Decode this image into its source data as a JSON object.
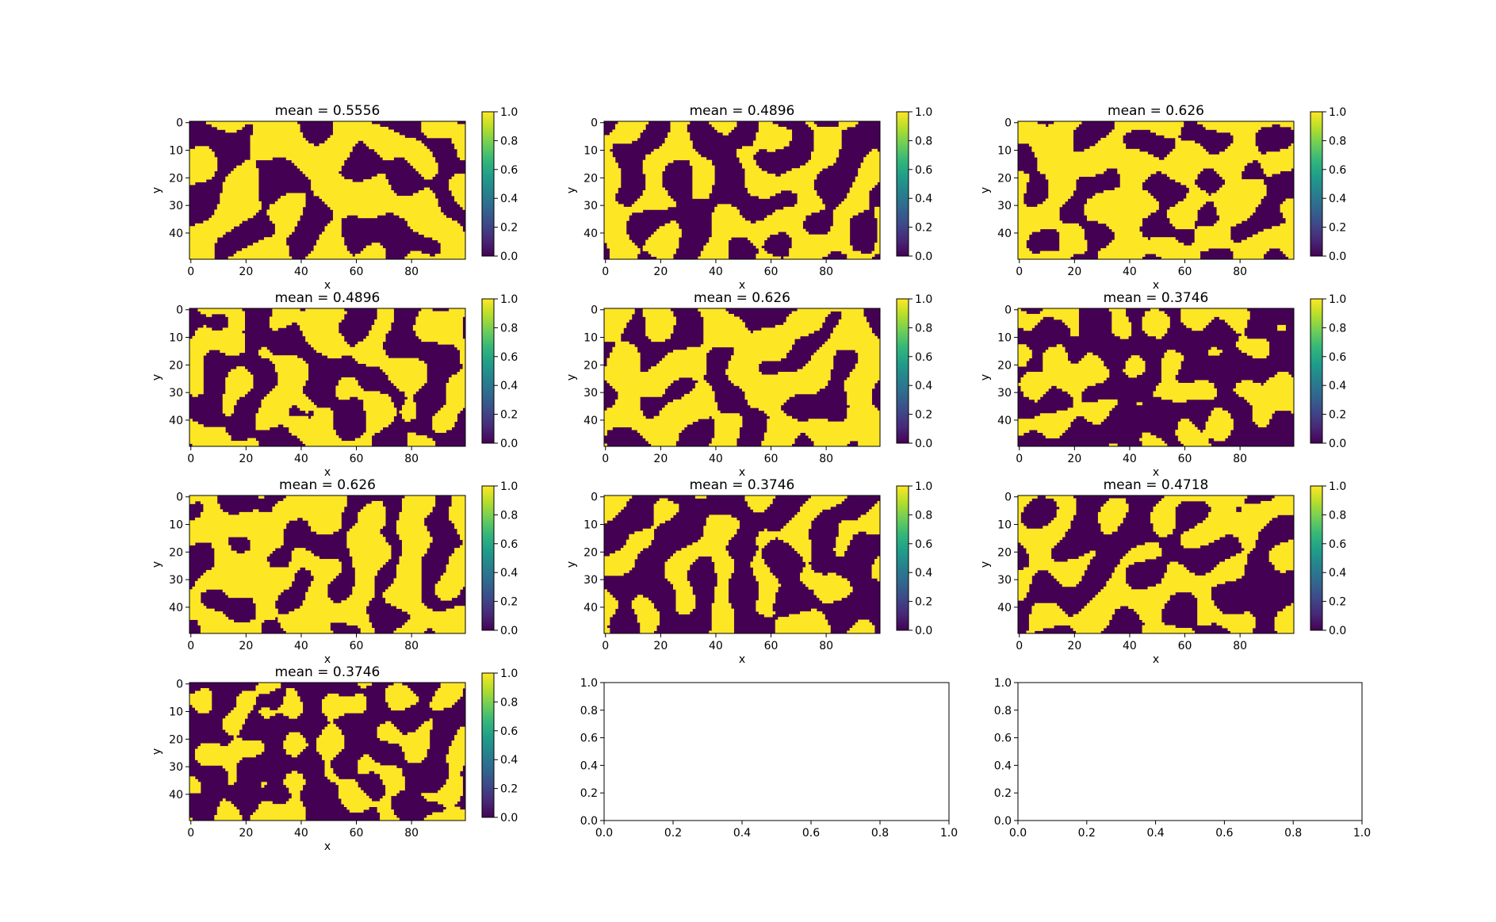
{
  "figure": {
    "grid_rows": 4,
    "grid_cols": 3,
    "colormap": "viridis (binary: 0.0 = #440154, 1.0 = #fde725)"
  },
  "colors": {
    "low": "#440154",
    "high": "#fde725",
    "viridis_stops": [
      "#440154",
      "#482878",
      "#3e4989",
      "#31688e",
      "#26828e",
      "#1f9e89",
      "#35b779",
      "#6ece58",
      "#b5de2b",
      "#fde725"
    ]
  },
  "chart_data": [
    {
      "type": "heatmap",
      "panel": 1,
      "title": "mean = 0.5556",
      "mean": 0.5556,
      "seed": 11,
      "xlabel": "x",
      "ylabel": "y",
      "xlim": [
        0,
        99
      ],
      "ylim": [
        49,
        0
      ],
      "xticks": [
        "0",
        "20",
        "40",
        "60",
        "80"
      ],
      "yticks": [
        "0",
        "10",
        "20",
        "30",
        "40"
      ],
      "colorbar": {
        "ticks": [
          "0.0",
          "0.2",
          "0.4",
          "0.6",
          "0.8",
          "1.0"
        ],
        "range": [
          0,
          1
        ]
      }
    },
    {
      "type": "heatmap",
      "panel": 2,
      "title": "mean = 0.4896",
      "mean": 0.4896,
      "seed": 22,
      "xlabel": "x",
      "ylabel": "y",
      "xlim": [
        0,
        99
      ],
      "ylim": [
        49,
        0
      ],
      "xticks": [
        "0",
        "20",
        "40",
        "60",
        "80"
      ],
      "yticks": [
        "0",
        "10",
        "20",
        "30",
        "40"
      ],
      "colorbar": {
        "ticks": [
          "0.0",
          "0.2",
          "0.4",
          "0.6",
          "0.8",
          "1.0"
        ],
        "range": [
          0,
          1
        ]
      }
    },
    {
      "type": "heatmap",
      "panel": 3,
      "title": "mean = 0.626",
      "mean": 0.626,
      "seed": 33,
      "xlabel": "x",
      "ylabel": "y",
      "xlim": [
        0,
        99
      ],
      "ylim": [
        49,
        0
      ],
      "xticks": [
        "0",
        "20",
        "40",
        "60",
        "80"
      ],
      "yticks": [
        "0",
        "10",
        "20",
        "30",
        "40"
      ],
      "colorbar": {
        "ticks": [
          "0.0",
          "0.2",
          "0.4",
          "0.6",
          "0.8",
          "1.0"
        ],
        "range": [
          0,
          1
        ]
      }
    },
    {
      "type": "heatmap",
      "panel": 4,
      "title": "mean = 0.4896",
      "mean": 0.4896,
      "seed": 44,
      "xlabel": "x",
      "ylabel": "y",
      "xlim": [
        0,
        99
      ],
      "ylim": [
        49,
        0
      ],
      "xticks": [
        "0",
        "20",
        "40",
        "60",
        "80"
      ],
      "yticks": [
        "0",
        "10",
        "20",
        "30",
        "40"
      ],
      "colorbar": {
        "ticks": [
          "0.0",
          "0.2",
          "0.4",
          "0.6",
          "0.8",
          "1.0"
        ],
        "range": [
          0,
          1
        ]
      }
    },
    {
      "type": "heatmap",
      "panel": 5,
      "title": "mean = 0.626",
      "mean": 0.626,
      "seed": 55,
      "xlabel": "x",
      "ylabel": "y",
      "xlim": [
        0,
        99
      ],
      "ylim": [
        49,
        0
      ],
      "xticks": [
        "0",
        "20",
        "40",
        "60",
        "80"
      ],
      "yticks": [
        "0",
        "10",
        "20",
        "30",
        "40"
      ],
      "colorbar": {
        "ticks": [
          "0.0",
          "0.2",
          "0.4",
          "0.6",
          "0.8",
          "1.0"
        ],
        "range": [
          0,
          1
        ]
      }
    },
    {
      "type": "heatmap",
      "panel": 6,
      "title": "mean = 0.3746",
      "mean": 0.3746,
      "seed": 66,
      "xlabel": "x",
      "ylabel": "y",
      "xlim": [
        0,
        99
      ],
      "ylim": [
        49,
        0
      ],
      "xticks": [
        "0",
        "20",
        "40",
        "60",
        "80"
      ],
      "yticks": [
        "0",
        "10",
        "20",
        "30",
        "40"
      ],
      "colorbar": {
        "ticks": [
          "0.0",
          "0.2",
          "0.4",
          "0.6",
          "0.8",
          "1.0"
        ],
        "range": [
          0,
          1
        ]
      }
    },
    {
      "type": "heatmap",
      "panel": 7,
      "title": "mean = 0.626",
      "mean": 0.626,
      "seed": 77,
      "xlabel": "x",
      "ylabel": "y",
      "xlim": [
        0,
        99
      ],
      "ylim": [
        49,
        0
      ],
      "xticks": [
        "0",
        "20",
        "40",
        "60",
        "80"
      ],
      "yticks": [
        "0",
        "10",
        "20",
        "30",
        "40"
      ],
      "colorbar": {
        "ticks": [
          "0.0",
          "0.2",
          "0.4",
          "0.6",
          "0.8",
          "1.0"
        ],
        "range": [
          0,
          1
        ]
      }
    },
    {
      "type": "heatmap",
      "panel": 8,
      "title": "mean = 0.3746",
      "mean": 0.3746,
      "seed": 88,
      "xlabel": "x",
      "ylabel": "y",
      "xlim": [
        0,
        99
      ],
      "ylim": [
        49,
        0
      ],
      "xticks": [
        "0",
        "20",
        "40",
        "60",
        "80"
      ],
      "yticks": [
        "0",
        "10",
        "20",
        "30",
        "40"
      ],
      "colorbar": {
        "ticks": [
          "0.0",
          "0.2",
          "0.4",
          "0.6",
          "0.8",
          "1.0"
        ],
        "range": [
          0,
          1
        ]
      }
    },
    {
      "type": "heatmap",
      "panel": 9,
      "title": "mean = 0.4718",
      "mean": 0.4718,
      "seed": 99,
      "xlabel": "x",
      "ylabel": "y",
      "xlim": [
        0,
        99
      ],
      "ylim": [
        49,
        0
      ],
      "xticks": [
        "0",
        "20",
        "40",
        "60",
        "80"
      ],
      "yticks": [
        "0",
        "10",
        "20",
        "30",
        "40"
      ],
      "colorbar": {
        "ticks": [
          "0.0",
          "0.2",
          "0.4",
          "0.6",
          "0.8",
          "1.0"
        ],
        "range": [
          0,
          1
        ]
      }
    },
    {
      "type": "heatmap",
      "panel": 10,
      "title": "mean = 0.3746",
      "mean": 0.3746,
      "seed": 111,
      "xlabel": "x",
      "ylabel": "y",
      "xlim": [
        0,
        99
      ],
      "ylim": [
        49,
        0
      ],
      "xticks": [
        "0",
        "20",
        "40",
        "60",
        "80"
      ],
      "yticks": [
        "0",
        "10",
        "20",
        "30",
        "40"
      ],
      "colorbar": {
        "ticks": [
          "0.0",
          "0.2",
          "0.4",
          "0.6",
          "0.8",
          "1.0"
        ],
        "range": [
          0,
          1
        ]
      }
    },
    {
      "type": "empty",
      "panel": 11,
      "xlim": [
        0,
        1
      ],
      "ylim": [
        0,
        1
      ],
      "xticks": [
        "0.0",
        "0.2",
        "0.4",
        "0.6",
        "0.8",
        "1.0"
      ],
      "yticks": [
        "0.0",
        "0.2",
        "0.4",
        "0.6",
        "0.8",
        "1.0"
      ]
    },
    {
      "type": "empty",
      "panel": 12,
      "xlim": [
        0,
        1
      ],
      "ylim": [
        0,
        1
      ],
      "xticks": [
        "0.0",
        "0.2",
        "0.4",
        "0.6",
        "0.8",
        "1.0"
      ],
      "yticks": [
        "0.0",
        "0.2",
        "0.4",
        "0.6",
        "0.8",
        "1.0"
      ]
    }
  ]
}
